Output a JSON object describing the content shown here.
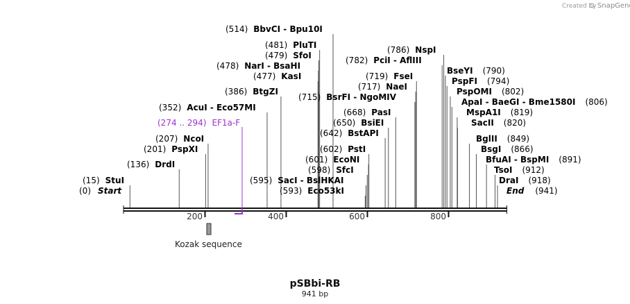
{
  "credit": {
    "prefix": "Created by",
    "brand": "SnapGene"
  },
  "title": "pSBbi-RB",
  "subtitle": "941 bp",
  "sequence_length": 941,
  "ticks": [
    200,
    400,
    600,
    800
  ],
  "tick_labels": [
    "200",
    "400",
    "600",
    "800"
  ],
  "features": [
    {
      "name": "Kozak sequence",
      "start": 209,
      "end": 219,
      "color": "#999999"
    }
  ],
  "primer": {
    "pos_text": "(274 .. 294)",
    "name": "EF1a-F",
    "start": 274,
    "end": 294,
    "color": "#9933cc"
  },
  "sites": [
    {
      "pos_text": "(514)",
      "name": "BbvCI  - Bpu10I",
      "pos": 514
    },
    {
      "pos_text": "(481)",
      "name": "PluTI",
      "pos": 481
    },
    {
      "pos_text": "(479)",
      "name": "SfoI",
      "pos": 479
    },
    {
      "pos_text": "(478)",
      "name": "NarI  - BsaHI",
      "pos": 478
    },
    {
      "pos_text": "(477)",
      "name": "KasI",
      "pos": 477
    },
    {
      "pos_text": "(386)",
      "name": "BtgZI",
      "pos": 386
    },
    {
      "pos_text": "(352)",
      "name": "AcuI  - Eco57MI",
      "pos": 352
    },
    {
      "pos_text": "(207)",
      "name": "NcoI",
      "pos": 207
    },
    {
      "pos_text": "(201)",
      "name": "PspXI",
      "pos": 201
    },
    {
      "pos_text": "(136)",
      "name": "DrdI",
      "pos": 136
    },
    {
      "pos_text": "(15)",
      "name": "StuI",
      "pos": 15
    },
    {
      "pos_text": "(0)",
      "name": "Start",
      "pos": 0,
      "italic": true
    },
    {
      "pos_text": "(786)",
      "name": "NspI",
      "pos": 786
    },
    {
      "pos_text": "(782)",
      "name": "PciI  - AflIII",
      "pos": 782
    },
    {
      "pos_text": "(719)",
      "name": "FseI",
      "pos": 719
    },
    {
      "pos_text": "(717)",
      "name": "NaeI",
      "pos": 717
    },
    {
      "pos_text": "(715)",
      "name": "BsrFI  - NgoMIV",
      "pos": 715
    },
    {
      "pos_text": "(668)",
      "name": "PasI",
      "pos": 668
    },
    {
      "pos_text": "(650)",
      "name": "BsiEI",
      "pos": 650
    },
    {
      "pos_text": "(642)",
      "name": "BstAPI",
      "pos": 642
    },
    {
      "pos_text": "(602)",
      "name": "PstI",
      "pos": 602
    },
    {
      "pos_text": "(601)",
      "name": "EcoNI",
      "pos": 601
    },
    {
      "pos_text": "(598)",
      "name": "SfcI",
      "pos": 598
    },
    {
      "pos_text": "(595)",
      "name": "SacI  - BslHKAI",
      "pos": 595
    },
    {
      "pos_text": "(593)",
      "name": "Eco53kI",
      "pos": 593
    },
    {
      "pos_text": "(790)",
      "name": "BseYI",
      "pos": 790
    },
    {
      "pos_text": "(794)",
      "name": "PspFI",
      "pos": 794
    },
    {
      "pos_text": "(802)",
      "name": "PspOMI",
      "pos": 802
    },
    {
      "pos_text": "(806)",
      "name": "ApaI  - BaeGI  - Bme1580I",
      "pos": 806
    },
    {
      "pos_text": "(819)",
      "name": "MspA1I",
      "pos": 819
    },
    {
      "pos_text": "(820)",
      "name": "SacII",
      "pos": 820
    },
    {
      "pos_text": "(849)",
      "name": "BglII",
      "pos": 849
    },
    {
      "pos_text": "(866)",
      "name": "BsgI",
      "pos": 866
    },
    {
      "pos_text": "(891)",
      "name": "BfuAI  - BspMI",
      "pos": 891
    },
    {
      "pos_text": "(912)",
      "name": "TsoI",
      "pos": 912
    },
    {
      "pos_text": "(918)",
      "name": "DraI",
      "pos": 918
    },
    {
      "pos_text": "(941)",
      "name": "End",
      "pos": 941,
      "italic": true
    }
  ]
}
